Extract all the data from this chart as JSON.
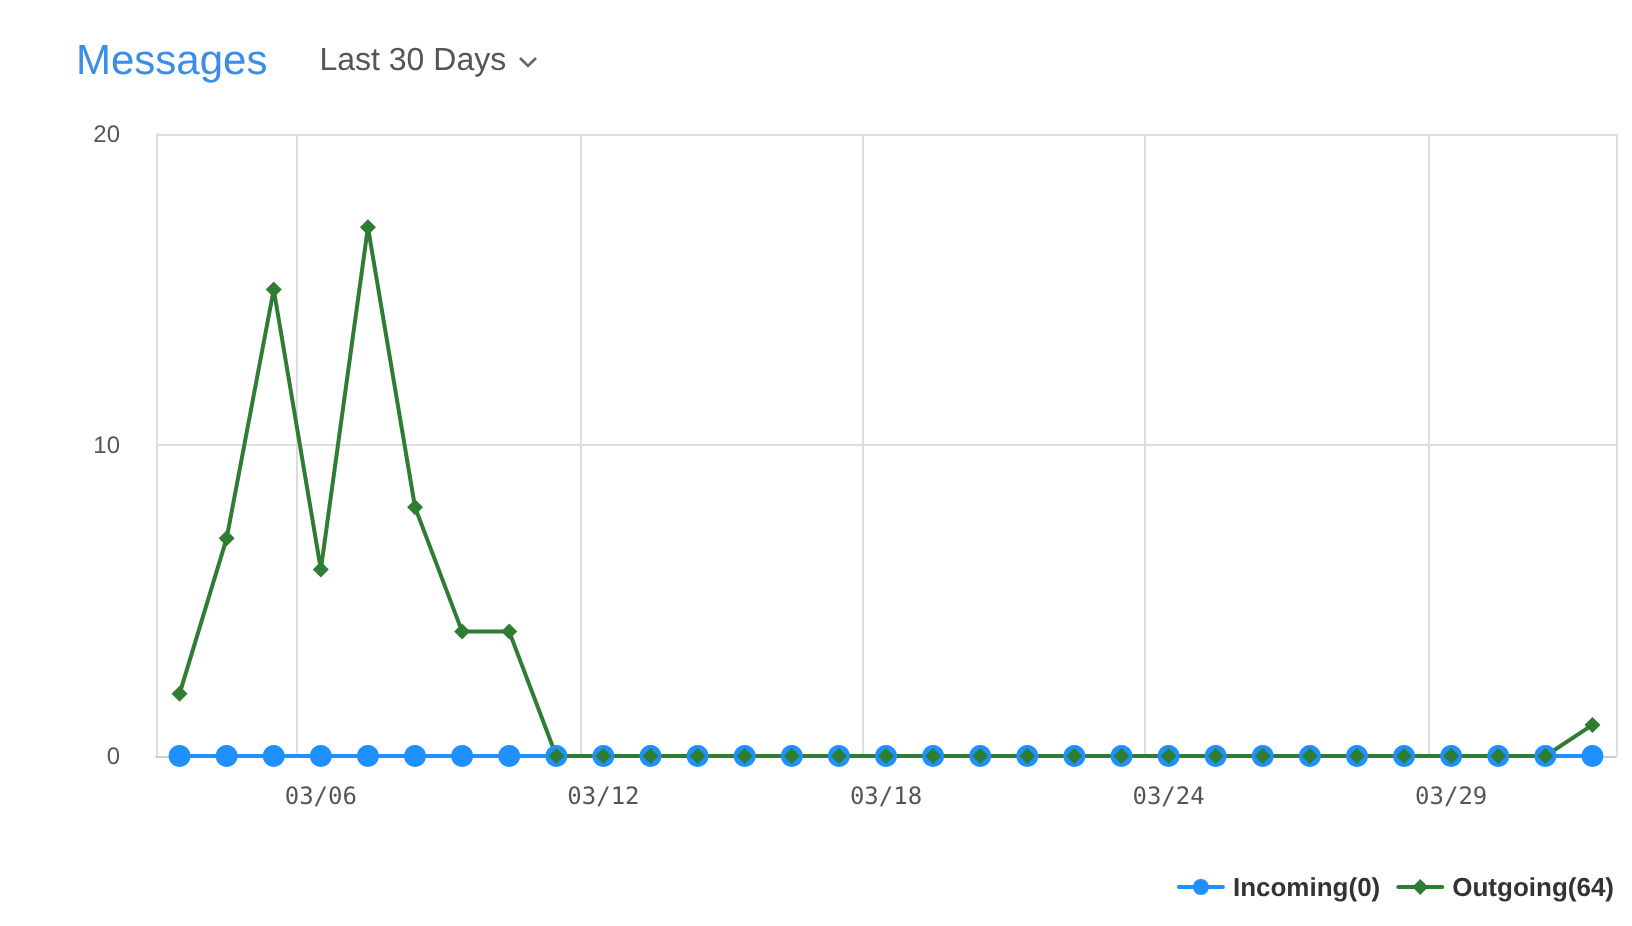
{
  "chart_data": {
    "type": "line",
    "title": "Messages",
    "subtitle": "Last 30 Days",
    "categories": [
      null,
      null,
      null,
      "03/06",
      null,
      null,
      null,
      null,
      null,
      "03/12",
      null,
      null,
      null,
      null,
      null,
      "03/18",
      null,
      null,
      null,
      null,
      null,
      "03/24",
      null,
      null,
      null,
      null,
      null,
      "03/29",
      null,
      null,
      null
    ],
    "series": [
      {
        "name": "Incoming(0)",
        "color": "#1e90ff",
        "marker": "circle",
        "values": [
          0,
          0,
          0,
          0,
          0,
          0,
          0,
          0,
          0,
          0,
          0,
          0,
          0,
          0,
          0,
          0,
          0,
          0,
          0,
          0,
          0,
          0,
          0,
          0,
          0,
          0,
          0,
          0,
          0,
          0,
          0
        ]
      },
      {
        "name": "Outgoing(64)",
        "color": "#2e7d32",
        "marker": "diamond",
        "values": [
          2,
          7,
          15,
          6,
          17,
          8,
          4,
          4,
          0,
          0,
          0,
          0,
          0,
          0,
          0,
          0,
          0,
          0,
          0,
          0,
          0,
          0,
          0,
          0,
          0,
          0,
          0,
          0,
          0,
          0,
          1
        ]
      }
    ],
    "ylim": [
      0,
      20
    ],
    "yticks": [
      0,
      10,
      20
    ],
    "grid": true,
    "legend": "bottom right",
    "line_style": "solid"
  }
}
